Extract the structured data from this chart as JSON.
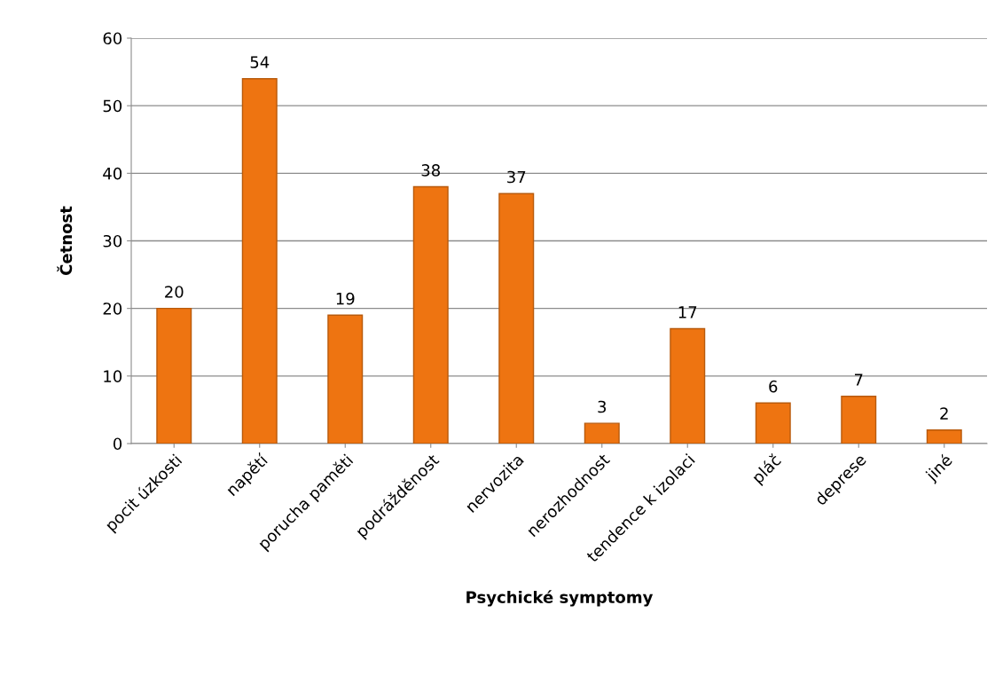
{
  "chart_data": {
    "type": "bar",
    "xlabel": "Psychické symptomy",
    "ylabel": "Četnost",
    "categories": [
      "pocit úzkosti",
      "napětí",
      "porucha paměti",
      "podrážděnost",
      "nervozita",
      "nerozhodnost",
      "tendence k izolaci",
      "pláč",
      "deprese",
      "jiné"
    ],
    "values": [
      20,
      54,
      19,
      38,
      37,
      3,
      17,
      6,
      7,
      2
    ],
    "color": "#ee7411",
    "ylim": [
      0,
      60
    ],
    "yticks": [
      0,
      10,
      20,
      30,
      40,
      50,
      60
    ],
    "grid": "y",
    "data_labels": true
  }
}
